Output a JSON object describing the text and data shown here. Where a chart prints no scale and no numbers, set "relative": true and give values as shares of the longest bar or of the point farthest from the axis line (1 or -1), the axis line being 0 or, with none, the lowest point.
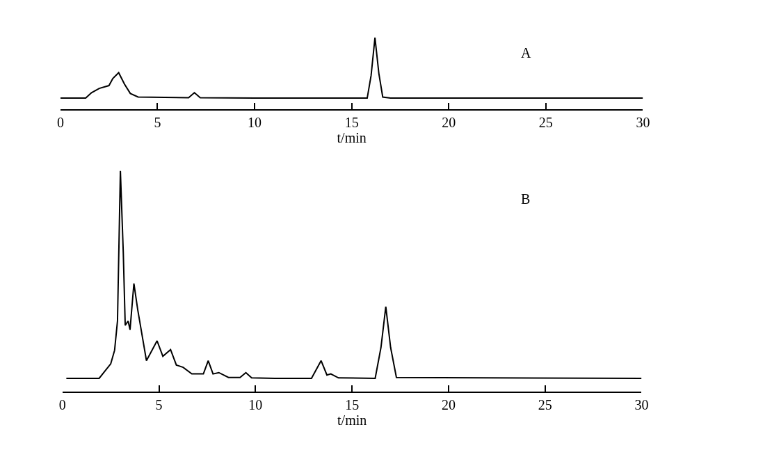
{
  "chart_data": [
    {
      "type": "line",
      "relative": true,
      "xlabel": "t/min",
      "annotations": [
        "A"
      ],
      "xlim": [
        0,
        30
      ],
      "xticks": [
        0,
        5,
        10,
        15,
        20,
        25,
        30
      ],
      "x": [
        0,
        1.3,
        1.6,
        2.0,
        2.5,
        2.7,
        3.0,
        3.3,
        3.6,
        4.0,
        6.6,
        6.9,
        7.2,
        10,
        15.8,
        16.0,
        16.2,
        16.4,
        16.6,
        17.0,
        30
      ],
      "series": [
        {
          "color": "#000000",
          "values": [
            0.155,
            0.155,
            0.23,
            0.29,
            0.33,
            0.43,
            0.51,
            0.35,
            0.22,
            0.17,
            0.16,
            0.23,
            0.16,
            0.155,
            0.155,
            0.47,
            1.0,
            0.5,
            0.17,
            0.155,
            0.155
          ]
        }
      ]
    },
    {
      "type": "line",
      "relative": true,
      "xlabel": "t/min",
      "annotations": [
        "B"
      ],
      "xlim": [
        0,
        30
      ],
      "xticks": [
        0,
        5,
        10,
        15,
        20,
        25,
        30
      ],
      "x": [
        0.2,
        1.9,
        2.5,
        2.7,
        2.85,
        3.0,
        3.15,
        3.25,
        3.4,
        3.5,
        3.7,
        3.9,
        4.35,
        4.9,
        5.2,
        5.6,
        5.9,
        6.25,
        6.7,
        7.3,
        7.55,
        7.8,
        8.1,
        8.6,
        9.2,
        9.5,
        9.8,
        11,
        12.9,
        13.4,
        13.7,
        13.9,
        14.3,
        16.2,
        16.5,
        16.75,
        17.0,
        17.3,
        30
      ],
      "series": [
        {
          "color": "#000000",
          "values": [
            0.06,
            0.06,
            0.126,
            0.187,
            0.32,
            1.0,
            0.63,
            0.3,
            0.32,
            0.28,
            0.49,
            0.37,
            0.14,
            0.23,
            0.16,
            0.19,
            0.12,
            0.11,
            0.08,
            0.08,
            0.14,
            0.08,
            0.086,
            0.064,
            0.064,
            0.086,
            0.062,
            0.06,
            0.06,
            0.14,
            0.075,
            0.08,
            0.062,
            0.06,
            0.2,
            0.385,
            0.2,
            0.064,
            0.06
          ]
        }
      ]
    }
  ]
}
